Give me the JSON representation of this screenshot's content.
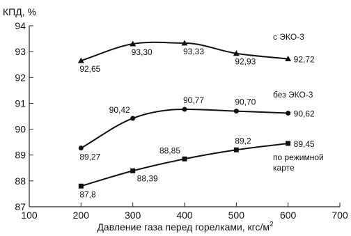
{
  "chart_data": {
    "type": "line",
    "ylabel": "КПД, %",
    "xlabel": "Давление газа перед горелками, кгс/м",
    "xlabel_sup": "2",
    "xlim": [
      100,
      700
    ],
    "ylim": [
      87,
      94
    ],
    "x_ticks": [
      100,
      200,
      300,
      400,
      500,
      600,
      700
    ],
    "y_ticks": [
      87,
      88,
      89,
      90,
      91,
      92,
      93,
      94
    ],
    "grid": false,
    "series": [
      {
        "name": "с ЭКО-3",
        "marker": "triangle",
        "x": [
          200,
          300,
          400,
          500,
          600
        ],
        "y": [
          92.65,
          93.3,
          93.33,
          92.93,
          92.72
        ],
        "labels": [
          "92,65",
          "93,30",
          "93,33",
          "92,93",
          "92,72"
        ]
      },
      {
        "name": "без ЭКО-3",
        "marker": "circle",
        "x": [
          200,
          300,
          400,
          500,
          600
        ],
        "y": [
          89.27,
          90.42,
          90.77,
          90.7,
          90.62
        ],
        "labels": [
          "89,27",
          "90,42",
          "90,77",
          "90,70",
          "90,62"
        ]
      },
      {
        "name_lines": [
          "по режимной",
          "карте"
        ],
        "marker": "square",
        "x": [
          200,
          300,
          400,
          500,
          600
        ],
        "y": [
          87.8,
          88.39,
          88.85,
          89.2,
          89.45
        ],
        "labels": [
          "87,8",
          "88,39",
          "88,85",
          "89,2",
          "89,45"
        ]
      }
    ]
  }
}
